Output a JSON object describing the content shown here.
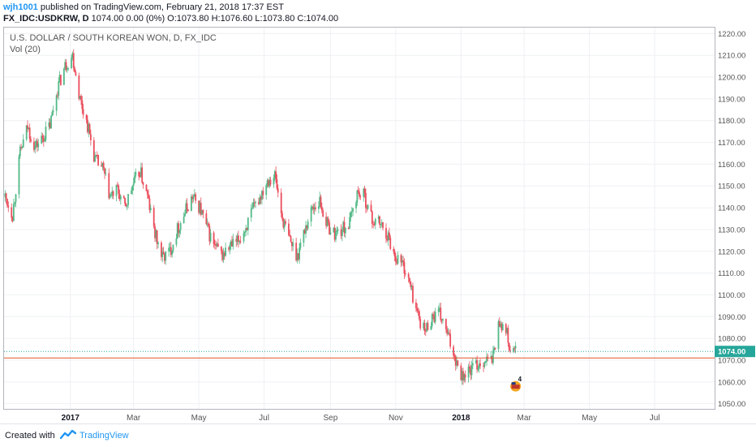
{
  "header": {
    "user": "wjh1001",
    "published": "published on TradingView.com, February 21, 2018 17:37 EST",
    "symbol": "FX_IDC:USDKRW, D",
    "quote": "1074.00 0.00 (0%) O:1073.80 H:1076.60 L:1073.80 C:1074.00"
  },
  "footer": {
    "created_with": "Created with",
    "brand": "TradingView"
  },
  "colors": {
    "up": "#53b987",
    "down": "#eb4d5c",
    "last_price": "#26a69a",
    "hline": "#e4572e",
    "grid": "#eef0f3"
  },
  "chart_data": {
    "type": "candlestick",
    "title": "U.S. DOLLAR / SOUTH KOREAN WON, D, FX_IDC",
    "indicator": "Vol (20)",
    "y_ticks": [
      1050,
      1060,
      1070,
      1080,
      1090,
      1100,
      1110,
      1120,
      1130,
      1140,
      1150,
      1160,
      1170,
      1180,
      1190,
      1200,
      1210,
      1220
    ],
    "y_tick_labels": [
      "1050.00",
      "1060.00",
      "1070.00",
      "1080.00",
      "1090.00",
      "1100.00",
      "1110.00",
      "1120.00",
      "1130.00",
      "1140.00",
      "1150.00",
      "1160.00",
      "1170.00",
      "1180.00",
      "1190.00",
      "1200.00",
      "1210.00",
      "1220.00"
    ],
    "ylim": [
      1048,
      1222
    ],
    "x_labels": [
      {
        "label": "2017",
        "date": "2017-01-01"
      },
      {
        "label": "Mar",
        "date": "2017-03-01"
      },
      {
        "label": "May",
        "date": "2017-05-01"
      },
      {
        "label": "Jul",
        "date": "2017-07-01"
      },
      {
        "label": "Sep",
        "date": "2017-09-01"
      },
      {
        "label": "Nov",
        "date": "2017-11-01"
      },
      {
        "label": "2018",
        "date": "2018-01-01"
      },
      {
        "label": "Mar",
        "date": "2018-03-01"
      },
      {
        "label": "May",
        "date": "2018-05-01"
      },
      {
        "label": "Jul",
        "date": "2018-07-01"
      }
    ],
    "xlim": [
      "2016-10-31",
      "2018-08-26"
    ],
    "last_price": 1074.0,
    "last_price_label": "1074.00",
    "horizontal_line": 1071.0,
    "event_marker": {
      "date": "2018-02-21",
      "label": "4"
    },
    "close_series": [
      [
        "2016-11-01",
        1145
      ],
      [
        "2016-11-08",
        1137
      ],
      [
        "2016-11-15",
        1165
      ],
      [
        "2016-11-22",
        1177
      ],
      [
        "2016-11-29",
        1168
      ],
      [
        "2016-12-06",
        1172
      ],
      [
        "2016-12-13",
        1178
      ],
      [
        "2016-12-20",
        1195
      ],
      [
        "2016-12-27",
        1205
      ],
      [
        "2017-01-03",
        1210
      ],
      [
        "2017-01-10",
        1190
      ],
      [
        "2017-01-17",
        1178
      ],
      [
        "2017-01-24",
        1162
      ],
      [
        "2017-01-31",
        1158
      ],
      [
        "2017-02-07",
        1145
      ],
      [
        "2017-02-14",
        1148
      ],
      [
        "2017-02-21",
        1140
      ],
      [
        "2017-02-28",
        1150
      ],
      [
        "2017-03-07",
        1157
      ],
      [
        "2017-03-14",
        1145
      ],
      [
        "2017-03-21",
        1128
      ],
      [
        "2017-03-28",
        1117
      ],
      [
        "2017-04-04",
        1120
      ],
      [
        "2017-04-11",
        1130
      ],
      [
        "2017-04-18",
        1138
      ],
      [
        "2017-04-25",
        1145
      ],
      [
        "2017-05-02",
        1140
      ],
      [
        "2017-05-09",
        1130
      ],
      [
        "2017-05-16",
        1122
      ],
      [
        "2017-05-23",
        1118
      ],
      [
        "2017-05-30",
        1122
      ],
      [
        "2017-06-06",
        1124
      ],
      [
        "2017-06-13",
        1130
      ],
      [
        "2017-06-20",
        1138
      ],
      [
        "2017-06-27",
        1145
      ],
      [
        "2017-07-04",
        1153
      ],
      [
        "2017-07-11",
        1155
      ],
      [
        "2017-07-18",
        1135
      ],
      [
        "2017-07-25",
        1125
      ],
      [
        "2017-08-01",
        1118
      ],
      [
        "2017-08-08",
        1130
      ],
      [
        "2017-08-15",
        1140
      ],
      [
        "2017-08-22",
        1143
      ],
      [
        "2017-08-29",
        1132
      ],
      [
        "2017-09-05",
        1128
      ],
      [
        "2017-09-12",
        1130
      ],
      [
        "2017-09-19",
        1133
      ],
      [
        "2017-09-26",
        1147
      ],
      [
        "2017-10-03",
        1145
      ],
      [
        "2017-10-10",
        1134
      ],
      [
        "2017-10-17",
        1133
      ],
      [
        "2017-10-24",
        1128
      ],
      [
        "2017-10-31",
        1118
      ],
      [
        "2017-11-07",
        1115
      ],
      [
        "2017-11-14",
        1105
      ],
      [
        "2017-11-21",
        1092
      ],
      [
        "2017-11-28",
        1083
      ],
      [
        "2017-12-05",
        1090
      ],
      [
        "2017-12-12",
        1091
      ],
      [
        "2017-12-19",
        1082
      ],
      [
        "2017-12-26",
        1072
      ],
      [
        "2018-01-02",
        1063
      ],
      [
        "2018-01-09",
        1065
      ],
      [
        "2018-01-16",
        1068
      ],
      [
        "2018-01-23",
        1070
      ],
      [
        "2018-01-30",
        1070
      ],
      [
        "2018-02-06",
        1088
      ],
      [
        "2018-02-13",
        1082
      ],
      [
        "2018-02-15",
        1075
      ],
      [
        "2018-02-21",
        1074
      ]
    ]
  }
}
